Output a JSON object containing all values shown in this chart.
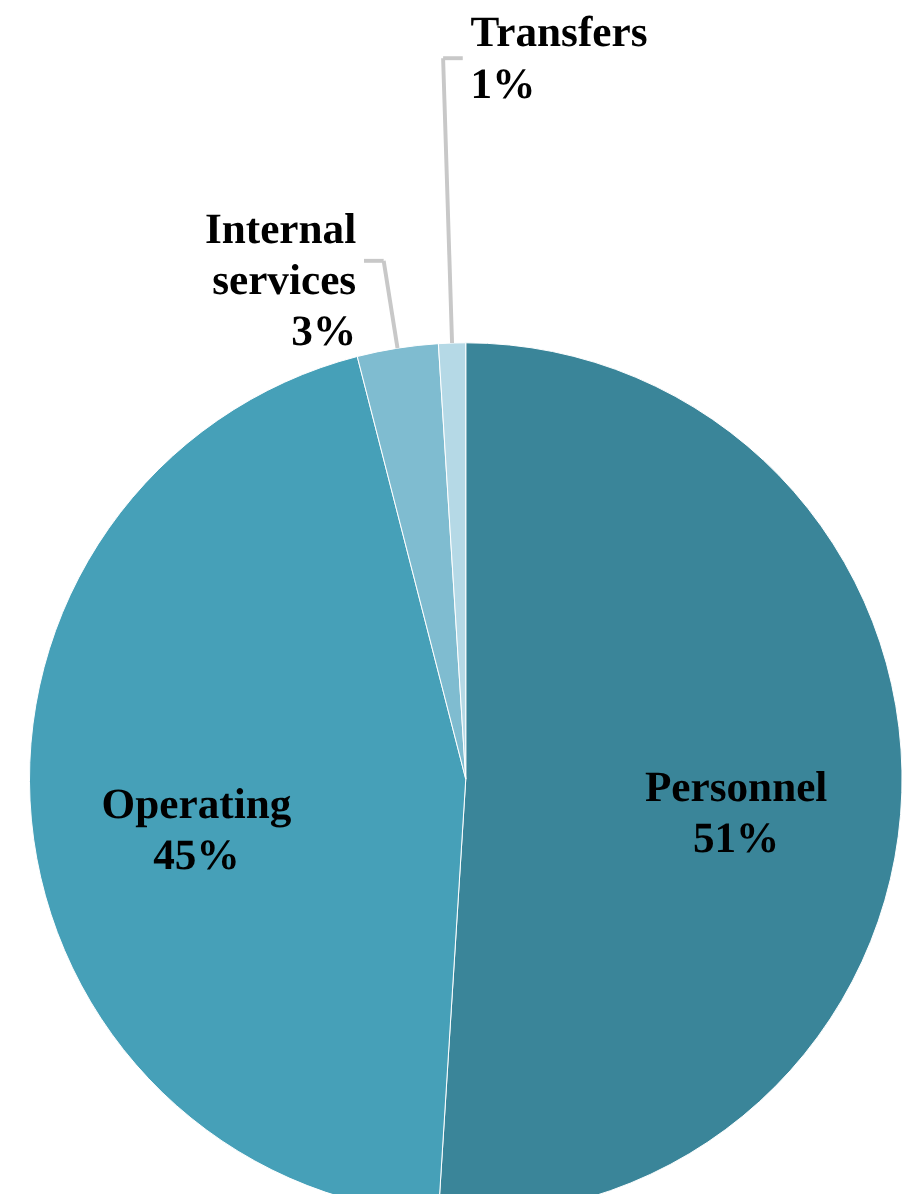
{
  "chart_data": {
    "type": "pie",
    "categories": [
      "Personnel",
      "Operating",
      "Internal services",
      "Transfers"
    ],
    "values": [
      51,
      45,
      3,
      1
    ],
    "value_labels": [
      "51%",
      "45%",
      "3%",
      "1%"
    ],
    "colors": [
      "#3a8599",
      "#46a0b8",
      "#7fbcd0",
      "#b5d9e6"
    ],
    "legend": false
  }
}
